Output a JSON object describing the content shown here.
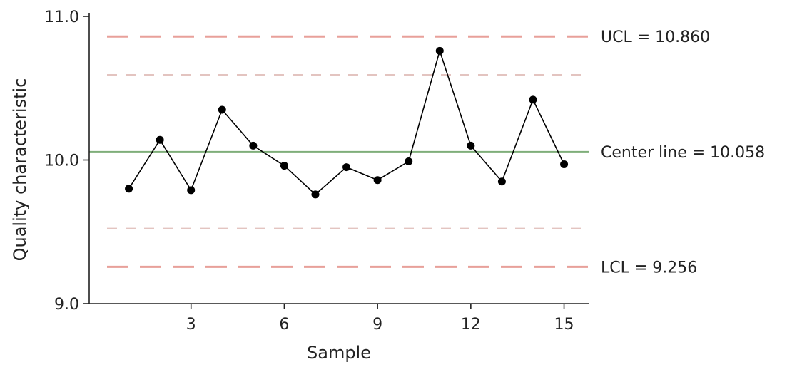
{
  "chart_data": {
    "type": "line",
    "title": "",
    "xlabel": "Sample",
    "ylabel": "Quality characteristic",
    "xlim": [
      0,
      16
    ],
    "ylim": [
      9.0,
      11.0
    ],
    "xticks": [
      3,
      6,
      9,
      12,
      15
    ],
    "yticks": [
      9.0,
      10.0,
      11.0
    ],
    "xtick_labels": [
      "3",
      "6",
      "9",
      "12",
      "15"
    ],
    "ytick_labels": [
      "9.0",
      "10.0",
      "11.0"
    ],
    "grid": false,
    "series": [
      {
        "x": [
          1,
          2,
          3,
          4,
          5,
          6,
          7,
          8,
          9,
          10,
          11,
          12,
          13,
          14,
          15
        ],
        "values": [
          9.8,
          10.14,
          9.79,
          10.35,
          10.1,
          9.96,
          9.76,
          9.95,
          9.86,
          9.99,
          10.76,
          10.1,
          9.85,
          10.42,
          9.97
        ],
        "color": "#000000"
      }
    ],
    "reference_lines": [
      {
        "y": 10.86,
        "label": "UCL = 10.860",
        "style": "long-dash",
        "color": "#e8a09a"
      },
      {
        "y": 10.593,
        "label": "",
        "style": "short-dash",
        "color": "#e3c4c0"
      },
      {
        "y": 10.058,
        "label": "Center line = 10.058",
        "style": "solid",
        "color": "#7fae7a"
      },
      {
        "y": 9.523,
        "label": "",
        "style": "short-dash",
        "color": "#e3c4c0"
      },
      {
        "y": 9.256,
        "label": "LCL = 9.256",
        "style": "long-dash",
        "color": "#e8a09a"
      }
    ]
  }
}
